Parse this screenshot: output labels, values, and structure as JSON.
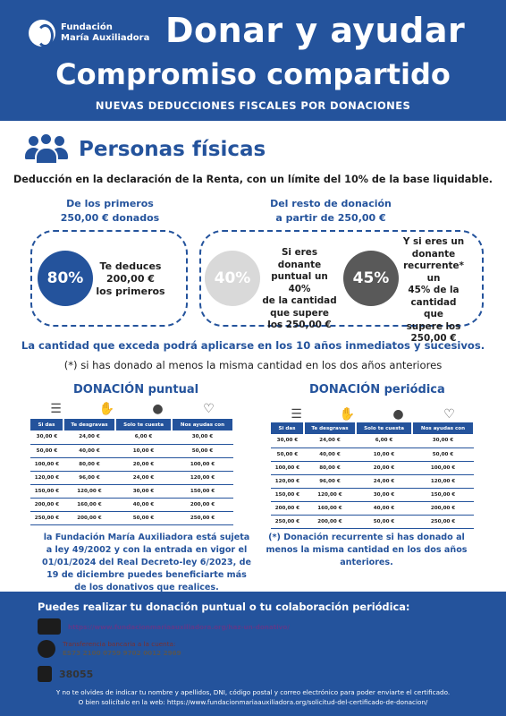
{
  "header": {
    "logo_line1": "Fundación",
    "logo_line2": "María Auxiliadora",
    "title": "Donar y ayudar",
    "subtitle": "Compromiso compartido",
    "note": "NUEVAS DEDUCCIONES FISCALES POR DONACIONES"
  },
  "section": {
    "title": "Personas físicas",
    "lead": "Deducción en la declaración de la Renta, con un límite del 10% de la base liquidable."
  },
  "left_col": {
    "heading_1": "De los primeros",
    "heading_2": "250,00 € donados",
    "percent": "80%",
    "text_1": "Te deduces",
    "text_2": "200,00 €",
    "text_3": "los primeros"
  },
  "right_col": {
    "heading_1": "Del resto de donación",
    "heading_2": "a partir de 250,00 €",
    "percent_a": "40%",
    "text_a": [
      "Si eres donante",
      "puntual un 40%",
      "de la cantidad",
      "que supere",
      "los 250,00 €"
    ],
    "percent_b": "45%",
    "text_b": [
      "Y si eres un",
      "donante",
      "recurrente* un",
      "45% de la",
      "cantidad que",
      "supere los",
      "250,00 €"
    ]
  },
  "excede": "La cantidad que exceda podrá aplicarse en los 10 años inmediatos y sucesivos.",
  "asterisk": "(*) si has donado al menos la misma cantidad en los dos años anteriores",
  "puntual": {
    "title": "DONACIÓN puntual",
    "headers": [
      "Si das",
      "Te desgravas",
      "Solo te cuesta",
      "Nos ayudas con"
    ],
    "rows": [
      [
        "30,00 €",
        "24,00 €",
        "6,00 €",
        "30,00 €"
      ],
      [
        "50,00 €",
        "40,00 €",
        "10,00 €",
        "50,00 €"
      ],
      [
        "100,00 €",
        "80,00 €",
        "20,00 €",
        "100,00 €"
      ],
      [
        "120,00 €",
        "96,00 €",
        "24,00 €",
        "120,00 €"
      ],
      [
        "150,00 €",
        "120,00 €",
        "30,00 €",
        "150,00 €"
      ],
      [
        "200,00 €",
        "160,00 €",
        "40,00 €",
        "200,00 €"
      ],
      [
        "250,00 €",
        "200,00 €",
        "50,00 €",
        "250,00 €"
      ]
    ]
  },
  "periodica": {
    "title": "DONACIÓN periódica",
    "headers": [
      "Si das",
      "Te desgravas",
      "Solo te cuesta",
      "Nos ayudas con"
    ],
    "rows": [
      [
        "30,00 €",
        "24,00 €",
        "6,00 €",
        "30,00 €"
      ],
      [
        "50,00 €",
        "40,00 €",
        "10,00 €",
        "50,00 €"
      ],
      [
        "100,00 €",
        "80,00 €",
        "20,00 €",
        "100,00 €"
      ],
      [
        "120,00 €",
        "96,00 €",
        "24,00 €",
        "120,00 €"
      ],
      [
        "150,00 €",
        "120,00 €",
        "30,00 €",
        "150,00 €"
      ],
      [
        "200,00 €",
        "160,00 €",
        "40,00 €",
        "200,00 €"
      ],
      [
        "250,00 €",
        "200,00 €",
        "50,00 €",
        "250,00 €"
      ]
    ]
  },
  "bottom_left": "la Fundación María Auxiliadora está sujeta a ley 49/2002 y con la entrada en vigor el 01/01/2024 del Real Decreto-ley 6/2023, de 19 de diciembre puedes beneficiarte más de los donativos que realices.",
  "bottom_right": "(*) Donación recurrente si has donado al menos la misma cantidad en los dos años anteriores.",
  "footer": {
    "title": "Puedes realizar tu donación puntual o tu colaboración periódica:",
    "link": "https://www.fundacionmariaauxiliadora.org/haz-un-donativo/",
    "transfer_label": "Transferencia bancaria a la cuenta:",
    "iban": "ES73 2100 0759 9702 0012 2969",
    "bizum": "38055",
    "note_1": "Y no te olvides de indicar tu nombre y apellidos, DNI, código postal y correo electrónico para poder enviarte el certificado.",
    "note_2": "O bien solicítalo en la web: https://www.fundacionmariaauxiliadora.org/solicitud-del-certificado-de-donacion/"
  }
}
